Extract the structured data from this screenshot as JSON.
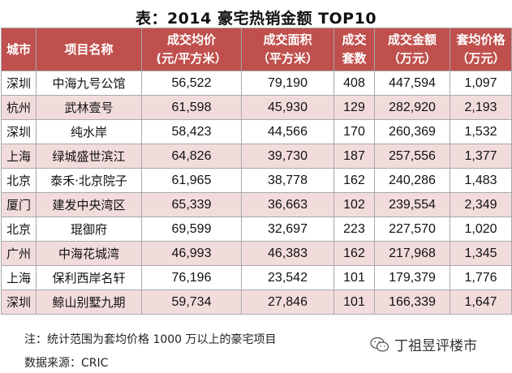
{
  "title": "表：2014 豪宅热销金额 TOP10",
  "table": {
    "headers": [
      {
        "line1": "城市",
        "line2": ""
      },
      {
        "line1": "项目名称",
        "line2": ""
      },
      {
        "line1": "成交均价",
        "line2": "(元/平方米）"
      },
      {
        "line1": "成交面积",
        "line2": "（平方米）"
      },
      {
        "line1": "成交",
        "line2": "套数"
      },
      {
        "line1": "成交金额",
        "line2": "（万元）"
      },
      {
        "line1": "套均价格",
        "line2": "（万元）"
      }
    ],
    "rows": [
      [
        "深圳",
        "中海九号公馆",
        "56,522",
        "79,190",
        "408",
        "447,594",
        "1,097"
      ],
      [
        "杭州",
        "武林壹号",
        "61,598",
        "45,930",
        "129",
        "282,920",
        "2,193"
      ],
      [
        "深圳",
        "纯水岸",
        "58,423",
        "44,566",
        "170",
        "260,369",
        "1,532"
      ],
      [
        "上海",
        "绿城盛世滨江",
        "64,826",
        "39,730",
        "187",
        "257,556",
        "1,377"
      ],
      [
        "北京",
        "泰禾·北京院子",
        "61,965",
        "38,778",
        "162",
        "240,286",
        "1,483"
      ],
      [
        "厦门",
        "建发中央湾区",
        "65,339",
        "36,663",
        "102",
        "239,554",
        "2,349"
      ],
      [
        "北京",
        "琨御府",
        "69,599",
        "32,697",
        "223",
        "227,570",
        "1,020"
      ],
      [
        "广州",
        "中海花城湾",
        "46,993",
        "46,383",
        "162",
        "217,968",
        "1,345"
      ],
      [
        "上海",
        "保利西岸名轩",
        "76,196",
        "23,542",
        "101",
        "179,379",
        "1,776"
      ],
      [
        "深圳",
        "鲸山别墅九期",
        "59,734",
        "27,846",
        "101",
        "166,339",
        "1,647"
      ]
    ]
  },
  "notes": {
    "note": "注：统计范围为套均价格 1000 万以上的豪宅项目",
    "source": "数据来源：CRIC"
  },
  "watermark": {
    "icon": "wechat-icon",
    "text": "丁祖昱评楼市"
  },
  "colors": {
    "header_bg": "#c0504d",
    "header_text": "#ffffff",
    "row_alt_bg": "#f2dcdb",
    "border": "#a9a9a9"
  }
}
